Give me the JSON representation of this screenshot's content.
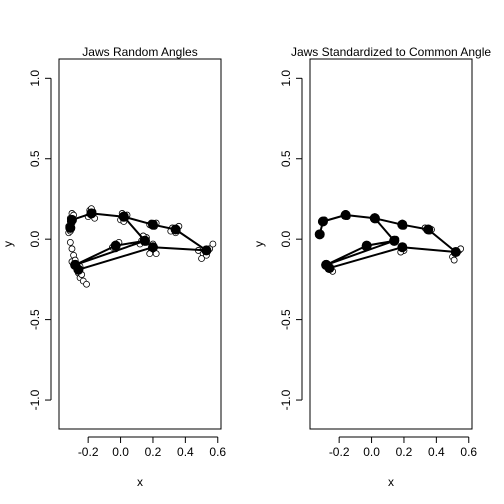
{
  "chart_data": [
    {
      "type": "scatter",
      "title": "Jaws Random Angles",
      "xlabel": "x",
      "ylabel": "y",
      "xlim": [
        -0.38,
        0.62
      ],
      "ylim": [
        -1.18,
        1.12
      ],
      "xticks": [
        -0.2,
        0.0,
        0.2,
        0.4,
        0.6
      ],
      "xtick_labels": [
        "-0.2",
        "0.0",
        "0.2",
        "0.4",
        "0.6"
      ],
      "yticks": [
        -1.0,
        -0.5,
        0.0,
        0.5,
        1.0
      ],
      "ytick_labels": [
        "-1.0",
        "-0.5",
        "0.0",
        "0.5",
        "1.0"
      ],
      "grid": false,
      "series": [
        {
          "role": "mean shape",
          "points": [
            [
              -0.31,
              0.07
            ],
            [
              -0.3,
              0.12
            ],
            [
              -0.18,
              0.16
            ],
            [
              0.02,
              0.14
            ],
            [
              0.2,
              0.09
            ],
            [
              0.34,
              0.06
            ],
            [
              0.53,
              -0.07
            ],
            [
              0.2,
              -0.05
            ],
            [
              -0.26,
              -0.19
            ],
            [
              -0.28,
              -0.16
            ],
            [
              0.15,
              -0.01
            ],
            [
              0.02,
              0.14
            ],
            [
              0.15,
              -0.01
            ],
            [
              -0.03,
              -0.04
            ],
            [
              -0.28,
              -0.16
            ]
          ]
        },
        {
          "role": "landmarks",
          "points": [
            [
              -0.32,
              0.04
            ],
            [
              -0.32,
              0.07
            ],
            [
              -0.3,
              0.1
            ],
            [
              -0.31,
              0.13
            ],
            [
              -0.3,
              0.16
            ],
            [
              -0.29,
              0.15
            ],
            [
              -0.31,
              0.11
            ],
            [
              -0.32,
              0.08
            ],
            [
              -0.31,
              0.05
            ],
            [
              -0.19,
              0.18
            ],
            [
              -0.17,
              0.17
            ],
            [
              -0.2,
              0.14
            ],
            [
              -0.16,
              0.13
            ],
            [
              -0.18,
              0.19
            ],
            [
              0.01,
              0.16
            ],
            [
              0.03,
              0.13
            ],
            [
              0.0,
              0.12
            ],
            [
              0.04,
              0.15
            ],
            [
              0.02,
              0.11
            ],
            [
              0.19,
              0.1
            ],
            [
              0.21,
              0.08
            ],
            [
              0.18,
              0.09
            ],
            [
              0.22,
              0.1
            ],
            [
              0.32,
              0.07
            ],
            [
              0.35,
              0.05
            ],
            [
              0.36,
              0.08
            ],
            [
              0.31,
              0.05
            ],
            [
              0.34,
              0.04
            ],
            [
              0.51,
              -0.09
            ],
            [
              0.55,
              -0.06
            ],
            [
              0.57,
              -0.03
            ],
            [
              0.5,
              -0.12
            ],
            [
              0.53,
              -0.1
            ],
            [
              0.48,
              -0.07
            ],
            [
              0.2,
              -0.03
            ],
            [
              0.19,
              -0.07
            ],
            [
              0.22,
              -0.09
            ],
            [
              0.18,
              -0.09
            ],
            [
              0.21,
              -0.05
            ],
            [
              0.13,
              -0.01
            ],
            [
              0.16,
              0.01
            ],
            [
              0.14,
              0.02
            ],
            [
              0.12,
              -0.03
            ],
            [
              0.16,
              -0.02
            ],
            [
              -0.03,
              -0.03
            ],
            [
              -0.05,
              -0.05
            ],
            [
              -0.01,
              -0.02
            ],
            [
              -0.03,
              -0.06
            ],
            [
              -0.31,
              -0.02
            ],
            [
              -0.3,
              -0.06
            ],
            [
              -0.29,
              -0.1
            ],
            [
              -0.3,
              -0.14
            ],
            [
              -0.28,
              -0.13
            ],
            [
              -0.27,
              -0.18
            ],
            [
              -0.26,
              -0.21
            ],
            [
              -0.25,
              -0.24
            ],
            [
              -0.23,
              -0.26
            ],
            [
              -0.21,
              -0.28
            ],
            [
              -0.25,
              -0.17
            ],
            [
              -0.27,
              -0.19
            ],
            [
              -0.24,
              -0.22
            ]
          ]
        }
      ]
    },
    {
      "type": "scatter",
      "title": "Jaws Standardized to Common Angle",
      "xlabel": "x",
      "ylabel": "y",
      "xlim": [
        -0.38,
        0.62
      ],
      "ylim": [
        -1.18,
        1.12
      ],
      "xticks": [
        -0.2,
        0.0,
        0.2,
        0.4,
        0.6
      ],
      "xtick_labels": [
        "-0.2",
        "0.0",
        "0.2",
        "0.4",
        "0.6"
      ],
      "yticks": [
        -1.0,
        -0.5,
        0.0,
        0.5,
        1.0
      ],
      "ytick_labels": [
        "-1.0",
        "-0.5",
        "0.0",
        "0.5",
        "1.0"
      ],
      "grid": false,
      "series": [
        {
          "role": "mean shape",
          "points": [
            [
              -0.32,
              0.03
            ],
            [
              -0.3,
              0.11
            ],
            [
              -0.16,
              0.15
            ],
            [
              0.02,
              0.13
            ],
            [
              0.19,
              0.09
            ],
            [
              0.35,
              0.06
            ],
            [
              0.52,
              -0.08
            ],
            [
              0.19,
              -0.05
            ],
            [
              -0.26,
              -0.18
            ],
            [
              -0.28,
              -0.16
            ],
            [
              0.14,
              -0.01
            ],
            [
              0.02,
              0.13
            ],
            [
              0.14,
              -0.01
            ],
            [
              -0.03,
              -0.04
            ],
            [
              -0.28,
              -0.16
            ]
          ]
        },
        {
          "role": "landmarks",
          "points": [
            [
              -0.32,
              0.03
            ],
            [
              -0.31,
              0.11
            ],
            [
              -0.29,
              0.12
            ],
            [
              -0.17,
              0.15
            ],
            [
              -0.15,
              0.14
            ],
            [
              -0.16,
              0.16
            ],
            [
              0.01,
              0.13
            ],
            [
              0.03,
              0.12
            ],
            [
              0.02,
              0.14
            ],
            [
              0.18,
              0.09
            ],
            [
              0.2,
              0.08
            ],
            [
              0.19,
              0.1
            ],
            [
              0.34,
              0.06
            ],
            [
              0.36,
              0.05
            ],
            [
              0.33,
              0.07
            ],
            [
              0.37,
              0.06
            ],
            [
              0.52,
              -0.08
            ],
            [
              0.54,
              -0.07
            ],
            [
              0.5,
              -0.11
            ],
            [
              0.51,
              -0.13
            ],
            [
              0.55,
              -0.06
            ],
            [
              0.19,
              -0.05
            ],
            [
              0.2,
              -0.07
            ],
            [
              0.18,
              -0.08
            ],
            [
              0.14,
              -0.01
            ],
            [
              0.15,
              0.0
            ],
            [
              -0.03,
              -0.04
            ],
            [
              -0.04,
              -0.05
            ],
            [
              -0.02,
              -0.04
            ],
            [
              -0.28,
              -0.16
            ],
            [
              -0.27,
              -0.17
            ],
            [
              -0.26,
              -0.18
            ],
            [
              -0.25,
              -0.19
            ],
            [
              -0.24,
              -0.2
            ]
          ]
        }
      ]
    }
  ]
}
